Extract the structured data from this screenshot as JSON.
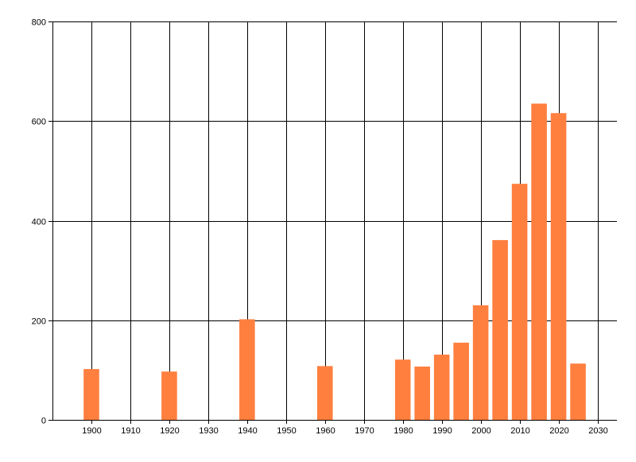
{
  "chart_data": {
    "type": "bar",
    "title": "",
    "xlabel": "",
    "ylabel": "",
    "x": [
      1900,
      1920,
      1940,
      1960,
      1980,
      1985,
      1990,
      1995,
      2000,
      2005,
      2010,
      2015,
      2020,
      2025
    ],
    "values": [
      102,
      97,
      202,
      108,
      121,
      107,
      131,
      155,
      230,
      361,
      474,
      635,
      616,
      113
    ],
    "xlim": [
      1890,
      2035
    ],
    "ylim": [
      0,
      800
    ],
    "x_ticks": [
      1900,
      1910,
      1920,
      1930,
      1940,
      1950,
      1960,
      1970,
      1980,
      1990,
      2000,
      2010,
      2020,
      2030
    ],
    "y_ticks": [
      0,
      200,
      400,
      600,
      800
    ],
    "bar_width_years": 4,
    "grid": true,
    "legend": "none",
    "bar_color": "#ff7f3f",
    "grid_color": "#000000",
    "axis_color": "#000000"
  }
}
